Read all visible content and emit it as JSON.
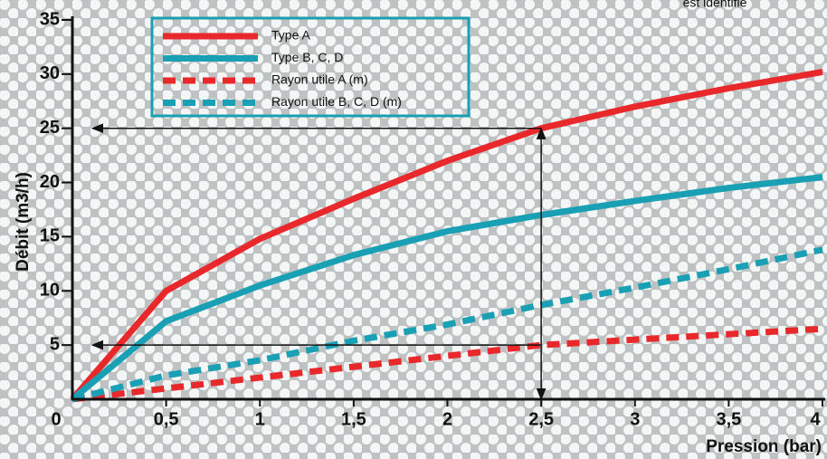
{
  "chart_data": {
    "type": "line",
    "annotation": "est identifié",
    "xlabel": "Pression (bar)",
    "ylabel": "Débit (m3/h)",
    "x": [
      0,
      0.5,
      1,
      1.5,
      2,
      2.5,
      3,
      3.5,
      4
    ],
    "series": [
      {
        "name": "Type A",
        "color": "#e8282b",
        "style": "solid",
        "values": [
          0,
          10,
          14.8,
          18.5,
          22,
          25,
          27,
          28.7,
          30.2
        ]
      },
      {
        "name": "Type B, C, D",
        "color": "#1aa0b4",
        "style": "solid",
        "values": [
          0,
          7.2,
          10.5,
          13.3,
          15.5,
          17,
          18.3,
          19.5,
          20.5
        ]
      },
      {
        "name": "Rayon utile A (m)",
        "color": "#e8282b",
        "style": "dashed",
        "values": [
          0,
          1,
          2,
          3,
          4,
          5,
          5.5,
          6,
          6.5
        ]
      },
      {
        "name": "Rayon utile B, C, D (m)",
        "color": "#1aa0b4",
        "style": "dashed",
        "values": [
          0,
          2.2,
          3.6,
          5.4,
          6.9,
          8.7,
          10.3,
          12,
          13.8
        ]
      }
    ],
    "guides": [
      {
        "x": 2.5,
        "y": 25
      },
      {
        "x": 2.5,
        "y": 5
      }
    ],
    "xlim": [
      0,
      4
    ],
    "ylim": [
      0,
      35
    ],
    "xticks": [
      {
        "value": 0,
        "label": "0"
      },
      {
        "value": 0.5,
        "label": "0,5"
      },
      1,
      {
        "value": 1.5,
        "label": "1,5"
      },
      2,
      {
        "value": 2.5,
        "label": "2,5"
      },
      3,
      {
        "value": 3.5,
        "label": "3,5"
      },
      4
    ],
    "yticks": [
      5,
      10,
      15,
      20,
      25,
      30,
      35
    ],
    "legend": "upper left"
  }
}
